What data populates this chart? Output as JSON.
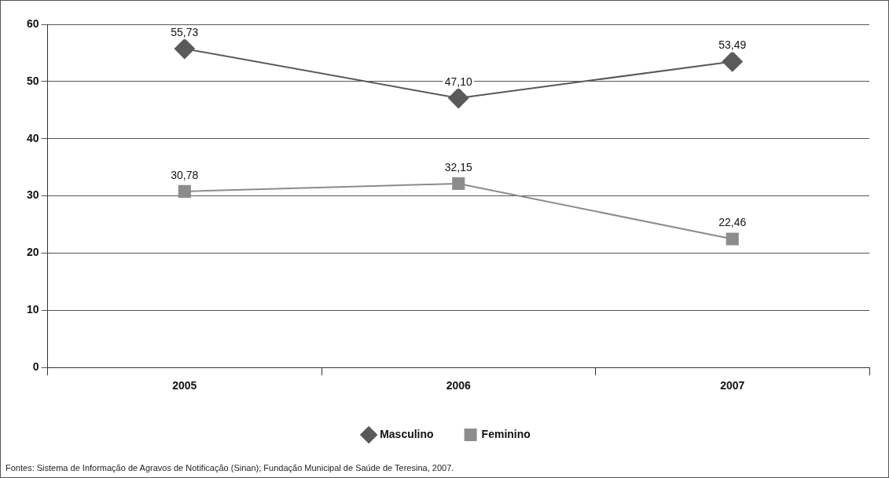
{
  "chart_data": {
    "type": "line",
    "categories": [
      "2005",
      "2006",
      "2007"
    ],
    "series": [
      {
        "name": "Masculino",
        "color": "#5a5a5a",
        "values": [
          55.73,
          47.1,
          53.49
        ],
        "marker": "diamond",
        "value_labels": [
          "55,73",
          "47,10",
          "53,49"
        ]
      },
      {
        "name": "Feminino",
        "color": "#8c8c8c",
        "values": [
          30.78,
          32.15,
          22.46
        ],
        "marker": "square",
        "value_labels": [
          "30,78",
          "32,15",
          "22,46"
        ]
      }
    ],
    "ylim": [
      0,
      60
    ],
    "yticks": [
      0,
      10,
      20,
      30,
      40,
      50,
      60
    ],
    "grid": "y",
    "legend": "bottom",
    "line_style": "solid",
    "annotations": [
      "Fontes: Sistema de Informação de Agravos de Notificação (Sinan); Fundação Municipal de Saúde de Teresina, 2007."
    ]
  }
}
